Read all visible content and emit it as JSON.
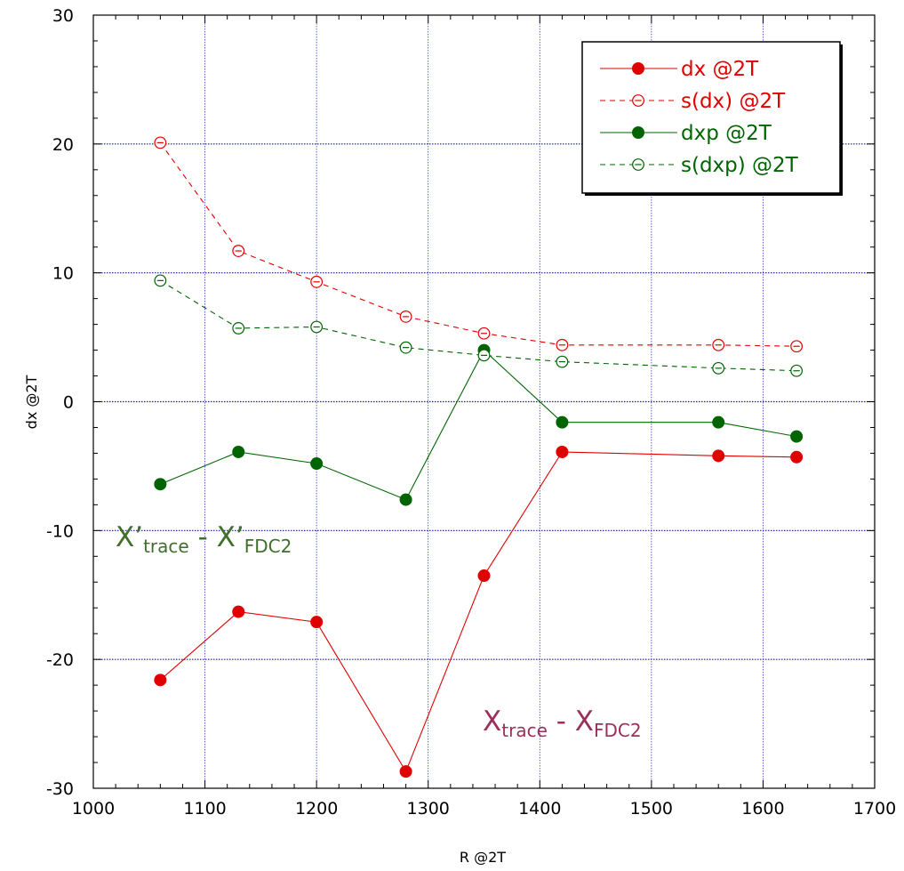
{
  "chart_data": {
    "type": "line",
    "xlabel": "R @2T",
    "ylabel": "dx @2T",
    "xlim": [
      1000,
      1700
    ],
    "ylim": [
      -30,
      30
    ],
    "x_ticks": [
      "1000",
      "1100",
      "1200",
      "1300",
      "1400",
      "1500",
      "1600",
      "1700"
    ],
    "y_ticks": [
      "-30",
      "-20",
      "-10",
      "0",
      "10",
      "20",
      "30"
    ],
    "grid": true,
    "legend_position": "top-right",
    "series": [
      {
        "name": "dx @2T",
        "color": "#e00000",
        "line": "solid",
        "marker": "filled-circle",
        "x": [
          1060,
          1130,
          1200,
          1280,
          1350,
          1420,
          1560,
          1630
        ],
        "y": [
          -21.6,
          -16.3,
          -17.1,
          -28.7,
          -13.5,
          -3.9,
          -4.2,
          -4.3
        ]
      },
      {
        "name": "s(dx) @2T",
        "color": "#e00000",
        "line": "dashed",
        "marker": "open-circle",
        "x": [
          1060,
          1130,
          1200,
          1280,
          1350,
          1420,
          1560,
          1630
        ],
        "y": [
          20.1,
          11.7,
          9.3,
          6.6,
          5.3,
          4.4,
          4.4,
          4.3
        ]
      },
      {
        "name": "dxp @2T",
        "color": "#006400",
        "line": "solid",
        "marker": "filled-circle",
        "x": [
          1060,
          1130,
          1200,
          1280,
          1350,
          1420,
          1560,
          1630
        ],
        "y": [
          -6.4,
          -3.9,
          -4.8,
          -7.6,
          4.0,
          -1.6,
          -1.6,
          -2.7
        ]
      },
      {
        "name": "s(dxp) @2T",
        "color": "#006400",
        "line": "dashed",
        "marker": "open-circle",
        "x": [
          1060,
          1130,
          1200,
          1280,
          1350,
          1420,
          1560,
          1630
        ],
        "y": [
          9.4,
          5.7,
          5.8,
          4.2,
          3.6,
          3.1,
          2.6,
          2.4
        ]
      }
    ],
    "annotations": [
      {
        "main1": "X’",
        "sub1": "trace",
        "sep": " - ",
        "main2": "X’",
        "sub2": "FDC2",
        "color": "#3f6f2a"
      },
      {
        "main1": "X",
        "sub1": "trace",
        "sep": " - ",
        "main2": "X",
        "sub2": "FDC2",
        "color": "#9b2f5a"
      }
    ]
  }
}
